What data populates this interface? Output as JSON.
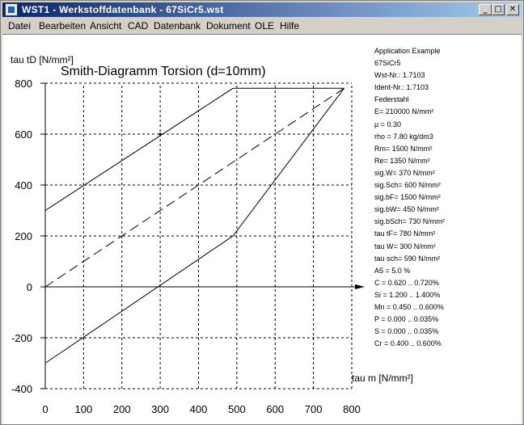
{
  "window": {
    "title": "WST1  -  Werkstoffdatenbank  -  67SiCr5.wst"
  },
  "title_buttons": {
    "minimize": "_",
    "maximize": "□",
    "close": "✕"
  },
  "menu": [
    "Datei",
    "Bearbeiten",
    "Ansicht",
    "CAD",
    "Datenbank",
    "Dokument",
    "OLE",
    "Hilfe"
  ],
  "info_lines": [
    "Application Example",
    "67SiCr5",
    "Wst-Nr.: 1.7103",
    "Ident-Nr.: 1.7103",
    "Federstahl",
    "E= 210000 N/mm²",
    "µ =  0.30",
    "rho =  7.80 kg/dm3",
    "Rm= 1500 N/mm²",
    "Re= 1350 N/mm²",
    "sig.W=  370 N/mm²",
    "sig.Sch=  600 N/mm²",
    "sig.bF= 1500 N/mm²",
    "sig.bW=  450 N/mm²",
    "sig.bSch=  730 N/mm²",
    "tau tF=  780 N/mm²",
    "tau W=  300 N/mm²",
    "tau sch=  590 N/mm²",
    "A5 =  5.0 %",
    "C = 0.620 .. 0.720%",
    "Si = 1.200 .. 1.400%",
    "Mn = 0.450 .. 0.600%",
    "P = 0.000 .. 0.035%",
    "S = 0.000 .. 0.035%",
    "Cr = 0.400 .. 0.600%"
  ],
  "chart_data": {
    "type": "line",
    "title": "Smith-Diagramm Torsion (d=10mm)",
    "xlabel": "tau m [N/mm²]",
    "ylabel": "tau tD [N/mm²]",
    "xlim": [
      0,
      800
    ],
    "ylim": [
      -400,
      800
    ],
    "xticks": [
      0,
      100,
      200,
      300,
      400,
      500,
      600,
      700,
      800
    ],
    "yticks": [
      -400,
      -200,
      0,
      200,
      400,
      600,
      800
    ],
    "grid": true,
    "series": [
      {
        "style": "solid",
        "points": [
          [
            0,
            300
          ],
          [
            490,
            780
          ],
          [
            780,
            780
          ]
        ]
      },
      {
        "style": "solid",
        "points": [
          [
            0,
            -300
          ],
          [
            490,
            200
          ],
          [
            780,
            780
          ]
        ]
      },
      {
        "style": "dashed",
        "points": [
          [
            0,
            0
          ],
          [
            780,
            780
          ]
        ]
      }
    ],
    "markers": [
      [
        300,
        600
      ]
    ]
  }
}
